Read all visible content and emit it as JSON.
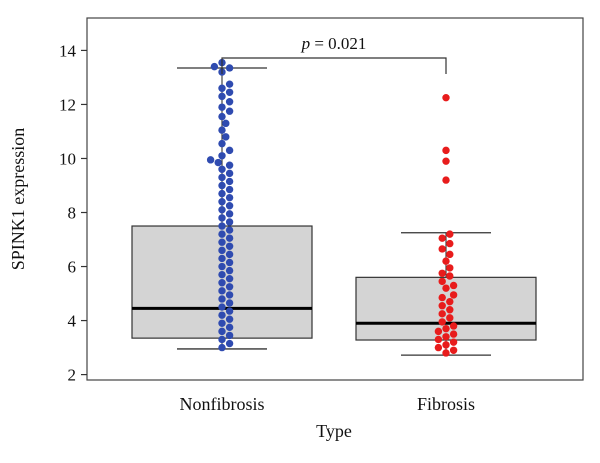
{
  "chart_data": {
    "type": "box-swarm",
    "xlabel": "Type",
    "ylabel": "SPINK1 expression",
    "ylim": [
      1.8,
      15.2
    ],
    "yticks": [
      2,
      4,
      6,
      8,
      10,
      12,
      14
    ],
    "categories": [
      "Nonfibrosis",
      "Fibrosis"
    ],
    "annotation": {
      "prefix": "p",
      "text": " = 0.021"
    },
    "groups": [
      {
        "name": "Nonfibrosis",
        "color": "#2f4bb0",
        "box": {
          "whisker_low": 2.95,
          "q1": 3.35,
          "median": 4.45,
          "q3": 7.5,
          "whisker_high": 13.35
        },
        "points": [
          13.55,
          13.4,
          13.35,
          13.2,
          12.75,
          12.6,
          12.45,
          12.3,
          12.1,
          11.9,
          11.75,
          11.55,
          11.3,
          11.05,
          10.8,
          10.55,
          10.3,
          10.1,
          9.95,
          9.85,
          9.75,
          9.6,
          9.45,
          9.3,
          9.15,
          9.0,
          8.85,
          8.7,
          8.55,
          8.4,
          8.25,
          8.1,
          7.95,
          7.8,
          7.65,
          7.5,
          7.35,
          7.2,
          7.05,
          6.9,
          6.75,
          6.6,
          6.45,
          6.3,
          6.15,
          6.0,
          5.85,
          5.7,
          5.55,
          5.4,
          5.25,
          5.1,
          4.95,
          4.8,
          4.65,
          4.5,
          4.35,
          4.2,
          4.05,
          3.9,
          3.75,
          3.6,
          3.45,
          3.3,
          3.15,
          3.0
        ]
      },
      {
        "name": "Fibrosis",
        "color": "#e81c1c",
        "box": {
          "whisker_low": 2.72,
          "q1": 3.28,
          "median": 3.9,
          "q3": 5.6,
          "whisker_high": 7.25
        },
        "points": [
          12.25,
          10.3,
          9.9,
          9.2,
          7.2,
          7.05,
          6.85,
          6.65,
          6.45,
          6.2,
          5.95,
          5.75,
          5.65,
          5.45,
          5.3,
          5.2,
          4.95,
          4.85,
          4.7,
          4.55,
          4.4,
          4.25,
          4.1,
          3.95,
          3.8,
          3.7,
          3.6,
          3.5,
          3.4,
          3.3,
          3.2,
          3.1,
          3.0,
          2.9,
          2.8
        ]
      }
    ]
  }
}
